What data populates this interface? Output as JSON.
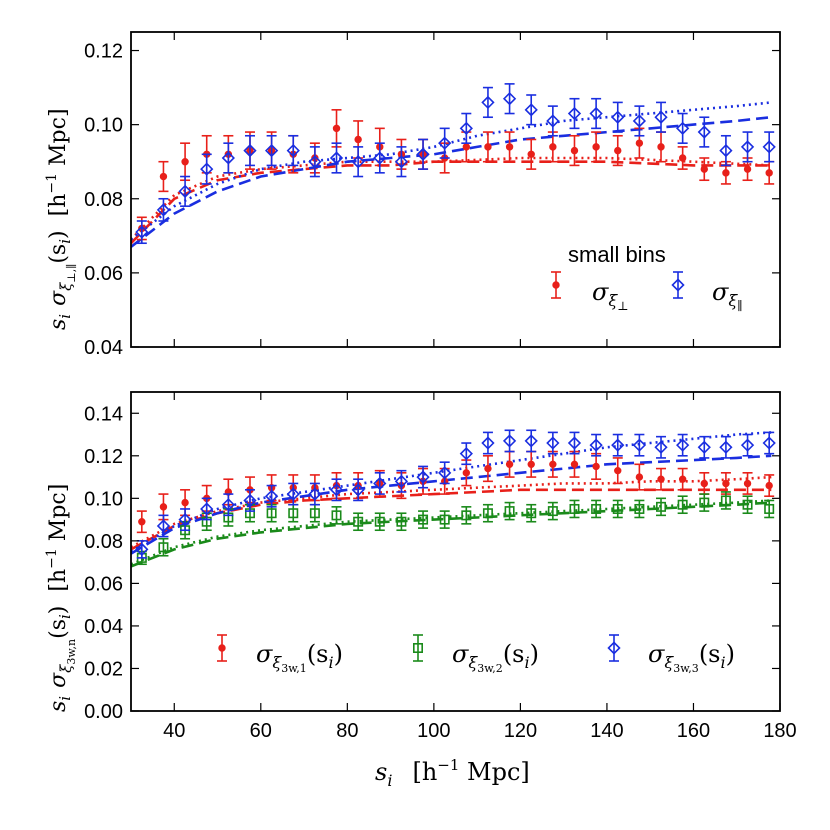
{
  "chart_data": [
    {
      "id": "top",
      "type": "scatter",
      "xlim": [
        30,
        180
      ],
      "ylim": [
        0.04,
        0.125
      ],
      "xticks": [],
      "yticks": [
        0.04,
        0.06,
        0.08,
        0.1,
        0.12
      ],
      "ytick_labels": [
        "0.04",
        "0.06",
        "0.08",
        "0.10",
        "0.12"
      ],
      "ylabel": {
        "s": "s",
        "i": "i",
        "sigma": "σ",
        "xi": "ξ",
        "sub": "⊥,∥",
        "arg": "(s",
        "argsub": "i",
        "close": ")",
        "unit": "[h",
        "exp": "−1",
        "mpc": " Mpc]"
      },
      "legend": {
        "title": "small bins",
        "entries": [
          {
            "series": "perp",
            "label": "σ",
            "sub": "ξ",
            "subsub": "⊥"
          },
          {
            "series": "par",
            "label": "σ",
            "sub": "ξ",
            "subsub": "∥"
          }
        ]
      },
      "series": [
        {
          "name": "perp",
          "color": "#e8201a",
          "marker": "circle",
          "x": [
            32.5,
            37.5,
            42.5,
            47.5,
            52.5,
            57.5,
            62.5,
            67.5,
            72.5,
            77.5,
            82.5,
            87.5,
            92.5,
            97.5,
            102.5,
            107.5,
            112.5,
            117.5,
            122.5,
            127.5,
            132.5,
            137.5,
            142.5,
            147.5,
            152.5,
            157.5,
            162.5,
            167.5,
            172.5,
            177.5
          ],
          "y": [
            0.072,
            0.086,
            0.09,
            0.092,
            0.092,
            0.093,
            0.093,
            0.092,
            0.091,
            0.099,
            0.096,
            0.094,
            0.092,
            0.092,
            0.091,
            0.094,
            0.094,
            0.094,
            0.092,
            0.094,
            0.093,
            0.094,
            0.093,
            0.095,
            0.094,
            0.091,
            0.088,
            0.087,
            0.088,
            0.087
          ],
          "err": [
            0.003,
            0.004,
            0.005,
            0.005,
            0.005,
            0.005,
            0.005,
            0.005,
            0.004,
            0.005,
            0.005,
            0.005,
            0.004,
            0.004,
            0.004,
            0.004,
            0.004,
            0.004,
            0.004,
            0.004,
            0.004,
            0.004,
            0.004,
            0.004,
            0.004,
            0.003,
            0.003,
            0.003,
            0.003,
            0.003
          ]
        },
        {
          "name": "par",
          "color": "#1a2ee0",
          "marker": "diamond",
          "x": [
            32.5,
            37.5,
            42.5,
            47.5,
            52.5,
            57.5,
            62.5,
            67.5,
            72.5,
            77.5,
            82.5,
            87.5,
            92.5,
            97.5,
            102.5,
            107.5,
            112.5,
            117.5,
            122.5,
            127.5,
            132.5,
            137.5,
            142.5,
            147.5,
            152.5,
            157.5,
            162.5,
            167.5,
            172.5,
            177.5
          ],
          "y": [
            0.071,
            0.077,
            0.082,
            0.088,
            0.091,
            0.093,
            0.093,
            0.093,
            0.09,
            0.091,
            0.09,
            0.091,
            0.09,
            0.092,
            0.095,
            0.099,
            0.106,
            0.107,
            0.104,
            0.101,
            0.103,
            0.103,
            0.102,
            0.101,
            0.102,
            0.099,
            0.098,
            0.093,
            0.094,
            0.094
          ],
          "err": [
            0.003,
            0.003,
            0.004,
            0.004,
            0.004,
            0.004,
            0.004,
            0.004,
            0.004,
            0.004,
            0.004,
            0.004,
            0.004,
            0.004,
            0.004,
            0.004,
            0.004,
            0.004,
            0.004,
            0.004,
            0.004,
            0.004,
            0.004,
            0.004,
            0.004,
            0.004,
            0.004,
            0.004,
            0.004,
            0.004
          ]
        }
      ],
      "curves": [
        {
          "name": "perp-dash",
          "color": "#e8201a",
          "style": "dash",
          "x": [
            30,
            40,
            50,
            60,
            70,
            80,
            90,
            100,
            120,
            140,
            160,
            178
          ],
          "y": [
            0.068,
            0.08,
            0.085,
            0.087,
            0.088,
            0.089,
            0.089,
            0.09,
            0.09,
            0.09,
            0.089,
            0.089
          ]
        },
        {
          "name": "perp-dot",
          "color": "#e8201a",
          "style": "dot",
          "x": [
            30,
            40,
            50,
            60,
            70,
            80,
            90,
            100,
            120,
            140,
            160,
            178
          ],
          "y": [
            0.069,
            0.081,
            0.086,
            0.088,
            0.089,
            0.09,
            0.09,
            0.09,
            0.091,
            0.091,
            0.09,
            0.089
          ]
        },
        {
          "name": "par-dash",
          "color": "#1a2ee0",
          "style": "dash",
          "x": [
            30,
            40,
            50,
            60,
            70,
            80,
            90,
            100,
            110,
            120,
            130,
            140,
            150,
            160,
            170,
            178
          ],
          "y": [
            0.067,
            0.076,
            0.082,
            0.086,
            0.088,
            0.09,
            0.091,
            0.092,
            0.094,
            0.096,
            0.097,
            0.098,
            0.099,
            0.1,
            0.101,
            0.102
          ]
        },
        {
          "name": "par-dot",
          "color": "#1a2ee0",
          "style": "dot",
          "x": [
            30,
            40,
            50,
            60,
            70,
            80,
            90,
            100,
            110,
            120,
            130,
            140,
            150,
            160,
            170,
            178
          ],
          "y": [
            0.069,
            0.078,
            0.084,
            0.088,
            0.09,
            0.091,
            0.092,
            0.094,
            0.097,
            0.099,
            0.101,
            0.102,
            0.103,
            0.104,
            0.105,
            0.106
          ]
        }
      ]
    },
    {
      "id": "bottom",
      "type": "scatter",
      "xlim": [
        30,
        180
      ],
      "ylim": [
        0.0,
        0.15
      ],
      "xticks": [
        40,
        60,
        80,
        100,
        120,
        140,
        160,
        180
      ],
      "xtick_labels": [
        "40",
        "60",
        "80",
        "100",
        "120",
        "140",
        "160",
        "180"
      ],
      "yticks": [
        0.0,
        0.02,
        0.04,
        0.06,
        0.08,
        0.1,
        0.12,
        0.14
      ],
      "ytick_labels": [
        "0.00",
        "0.02",
        "0.04",
        "0.06",
        "0.08",
        "0.10",
        "0.12",
        "0.14"
      ],
      "xlabel": {
        "s": "s",
        "i": "i",
        "unit": "[h",
        "exp": "−1",
        "mpc": " Mpc]"
      },
      "ylabel": {
        "s": "s",
        "i": "i",
        "sigma": "σ",
        "xi": "ξ",
        "sub": "3w,n",
        "arg": "(s",
        "argsub": "i",
        "close": ")",
        "unit": "[h",
        "exp": "−1",
        "mpc": " Mpc]"
      },
      "legend": {
        "entries": [
          {
            "series": "3w1",
            "label": "σ",
            "sub": "ξ",
            "subsub": "3w,1",
            "arg": "(s",
            "argsub": "i",
            "close": ")"
          },
          {
            "series": "3w2",
            "label": "σ",
            "sub": "ξ",
            "subsub": "3w,2",
            "arg": "(s",
            "argsub": "i",
            "close": ")"
          },
          {
            "series": "3w3",
            "label": "σ",
            "sub": "ξ",
            "subsub": "3w,3",
            "arg": "(s",
            "argsub": "i",
            "close": ")"
          }
        ]
      },
      "series": [
        {
          "name": "3w1",
          "color": "#e8201a",
          "marker": "circle",
          "x": [
            32.5,
            37.5,
            42.5,
            47.5,
            52.5,
            57.5,
            62.5,
            67.5,
            72.5,
            77.5,
            82.5,
            87.5,
            92.5,
            97.5,
            102.5,
            107.5,
            112.5,
            117.5,
            122.5,
            127.5,
            132.5,
            137.5,
            142.5,
            147.5,
            152.5,
            157.5,
            162.5,
            167.5,
            172.5,
            177.5
          ],
          "y": [
            0.089,
            0.096,
            0.098,
            0.1,
            0.103,
            0.104,
            0.105,
            0.105,
            0.105,
            0.106,
            0.106,
            0.107,
            0.106,
            0.108,
            0.108,
            0.112,
            0.114,
            0.116,
            0.116,
            0.116,
            0.116,
            0.115,
            0.113,
            0.11,
            0.109,
            0.109,
            0.107,
            0.107,
            0.107,
            0.106
          ],
          "err": [
            0.005,
            0.006,
            0.006,
            0.006,
            0.006,
            0.006,
            0.006,
            0.006,
            0.006,
            0.006,
            0.006,
            0.006,
            0.006,
            0.006,
            0.006,
            0.006,
            0.006,
            0.006,
            0.006,
            0.006,
            0.006,
            0.006,
            0.006,
            0.006,
            0.005,
            0.005,
            0.005,
            0.005,
            0.005,
            0.005
          ]
        },
        {
          "name": "3w2",
          "color": "#1a8a1a",
          "marker": "square",
          "x": [
            32.5,
            37.5,
            42.5,
            47.5,
            52.5,
            57.5,
            62.5,
            67.5,
            72.5,
            77.5,
            82.5,
            87.5,
            92.5,
            97.5,
            102.5,
            107.5,
            112.5,
            117.5,
            122.5,
            127.5,
            132.5,
            137.5,
            142.5,
            147.5,
            152.5,
            157.5,
            162.5,
            167.5,
            172.5,
            177.5
          ],
          "y": [
            0.072,
            0.077,
            0.085,
            0.089,
            0.091,
            0.093,
            0.093,
            0.093,
            0.093,
            0.092,
            0.089,
            0.089,
            0.089,
            0.09,
            0.09,
            0.092,
            0.093,
            0.094,
            0.093,
            0.094,
            0.095,
            0.095,
            0.095,
            0.095,
            0.096,
            0.097,
            0.098,
            0.099,
            0.097,
            0.095
          ],
          "err": [
            0.003,
            0.004,
            0.004,
            0.004,
            0.004,
            0.004,
            0.004,
            0.004,
            0.004,
            0.004,
            0.004,
            0.004,
            0.004,
            0.004,
            0.004,
            0.004,
            0.004,
            0.004,
            0.004,
            0.004,
            0.004,
            0.004,
            0.004,
            0.004,
            0.004,
            0.004,
            0.004,
            0.004,
            0.004,
            0.004
          ]
        },
        {
          "name": "3w3",
          "color": "#1a2ee0",
          "marker": "diamond",
          "x": [
            32.5,
            37.5,
            42.5,
            47.5,
            52.5,
            57.5,
            62.5,
            67.5,
            72.5,
            77.5,
            82.5,
            87.5,
            92.5,
            97.5,
            102.5,
            107.5,
            112.5,
            117.5,
            122.5,
            127.5,
            132.5,
            137.5,
            142.5,
            147.5,
            152.5,
            157.5,
            162.5,
            167.5,
            172.5,
            177.5
          ],
          "y": [
            0.076,
            0.087,
            0.09,
            0.095,
            0.097,
            0.099,
            0.101,
            0.102,
            0.102,
            0.104,
            0.104,
            0.107,
            0.108,
            0.11,
            0.112,
            0.121,
            0.126,
            0.127,
            0.127,
            0.126,
            0.126,
            0.125,
            0.125,
            0.125,
            0.124,
            0.125,
            0.124,
            0.124,
            0.125,
            0.126
          ],
          "err": [
            0.004,
            0.005,
            0.005,
            0.005,
            0.005,
            0.005,
            0.005,
            0.005,
            0.005,
            0.005,
            0.005,
            0.005,
            0.005,
            0.005,
            0.005,
            0.005,
            0.005,
            0.005,
            0.005,
            0.005,
            0.005,
            0.005,
            0.005,
            0.005,
            0.005,
            0.005,
            0.005,
            0.005,
            0.005,
            0.005
          ]
        }
      ],
      "curves": [
        {
          "name": "3w1-dash",
          "color": "#e8201a",
          "style": "dash",
          "x": [
            30,
            40,
            50,
            60,
            70,
            80,
            90,
            100,
            110,
            120,
            130,
            140,
            150,
            160,
            170,
            178
          ],
          "y": [
            0.076,
            0.087,
            0.093,
            0.097,
            0.099,
            0.1,
            0.101,
            0.102,
            0.103,
            0.104,
            0.104,
            0.104,
            0.104,
            0.104,
            0.104,
            0.104
          ]
        },
        {
          "name": "3w1-dot",
          "color": "#e8201a",
          "style": "dot",
          "x": [
            30,
            40,
            50,
            60,
            70,
            80,
            90,
            100,
            110,
            120,
            130,
            140,
            150,
            160,
            170,
            178
          ],
          "y": [
            0.077,
            0.088,
            0.094,
            0.098,
            0.1,
            0.102,
            0.103,
            0.104,
            0.105,
            0.106,
            0.107,
            0.107,
            0.108,
            0.108,
            0.109,
            0.11
          ]
        },
        {
          "name": "3w2-dash",
          "color": "#1a8a1a",
          "style": "dash",
          "x": [
            30,
            40,
            50,
            60,
            70,
            80,
            90,
            100,
            110,
            120,
            130,
            140,
            150,
            160,
            170,
            178
          ],
          "y": [
            0.068,
            0.076,
            0.081,
            0.084,
            0.086,
            0.088,
            0.089,
            0.09,
            0.091,
            0.092,
            0.093,
            0.094,
            0.095,
            0.096,
            0.097,
            0.098
          ]
        },
        {
          "name": "3w2-dot",
          "color": "#1a8a1a",
          "style": "dot",
          "x": [
            30,
            40,
            50,
            60,
            70,
            80,
            90,
            100,
            110,
            120,
            130,
            140,
            150,
            160,
            170,
            178
          ],
          "y": [
            0.069,
            0.077,
            0.082,
            0.085,
            0.087,
            0.089,
            0.09,
            0.091,
            0.092,
            0.093,
            0.094,
            0.095,
            0.096,
            0.097,
            0.098,
            0.099
          ]
        },
        {
          "name": "3w3-dash",
          "color": "#1a2ee0",
          "style": "dash",
          "x": [
            30,
            40,
            50,
            60,
            70,
            80,
            90,
            100,
            110,
            120,
            130,
            140,
            150,
            160,
            170,
            178
          ],
          "y": [
            0.074,
            0.086,
            0.093,
            0.098,
            0.101,
            0.104,
            0.106,
            0.108,
            0.11,
            0.112,
            0.114,
            0.116,
            0.117,
            0.118,
            0.119,
            0.12
          ]
        },
        {
          "name": "3w3-dot",
          "color": "#1a2ee0",
          "style": "dot",
          "x": [
            30,
            40,
            50,
            60,
            70,
            80,
            90,
            100,
            110,
            120,
            130,
            140,
            150,
            160,
            170,
            178
          ],
          "y": [
            0.075,
            0.087,
            0.095,
            0.1,
            0.103,
            0.106,
            0.109,
            0.112,
            0.115,
            0.118,
            0.121,
            0.124,
            0.126,
            0.128,
            0.13,
            0.131
          ]
        }
      ]
    }
  ]
}
